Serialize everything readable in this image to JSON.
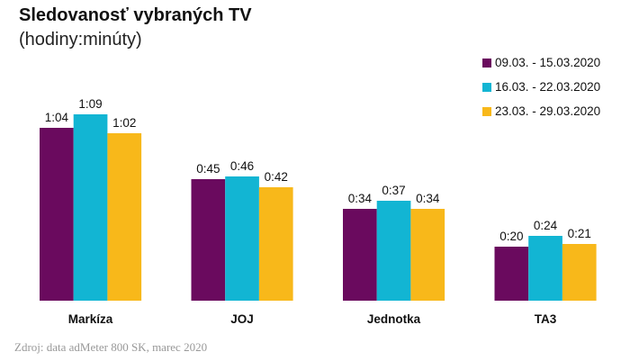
{
  "title": "Sledovanosť vybraných TV",
  "subtitle": "(hodiny:minúty)",
  "source": "Zdroj: data adMeter 800 SK, marec 2020",
  "chart_data": {
    "type": "bar",
    "title": "Sledovanosť vybraných TV",
    "subtitle": "(hodiny:minúty)",
    "unit": "minutes",
    "categories": [
      "Markíza",
      "JOJ",
      "Jednotka",
      "TA3"
    ],
    "series": [
      {
        "name": "09.03. - 15.03.2020",
        "color": "#6a0a5e",
        "values": [
          64,
          45,
          34,
          20
        ],
        "labels": [
          "1:04",
          "0:45",
          "0:34",
          "0:20"
        ]
      },
      {
        "name": "16.03. - 22.03.2020",
        "color": "#12b5d3",
        "values": [
          69,
          46,
          37,
          24
        ],
        "labels": [
          "1:09",
          "0:46",
          "0:37",
          "0:24"
        ]
      },
      {
        "name": "23.03. - 29.03.2020",
        "color": "#f8b81a",
        "values": [
          62,
          42,
          34,
          21
        ],
        "labels": [
          "1:02",
          "0:42",
          "0:34",
          "0:21"
        ]
      }
    ],
    "ylim": [
      0,
      75
    ],
    "grid": false,
    "legend": "top-right"
  }
}
